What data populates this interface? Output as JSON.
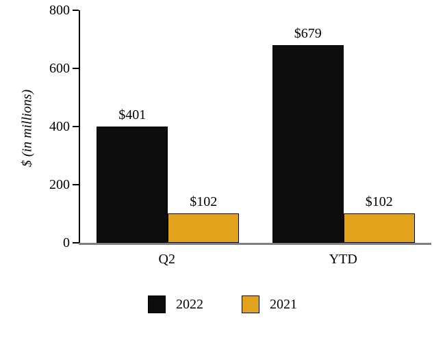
{
  "chart_data": {
    "type": "bar",
    "title": "",
    "xlabel": "",
    "ylabel": "$ (in millions)",
    "categories": [
      "Q2",
      "YTD"
    ],
    "series": [
      {
        "name": "2022",
        "color": "#0d0d0d",
        "values": [
          401,
          679
        ],
        "value_labels": [
          "$401",
          "$679"
        ]
      },
      {
        "name": "2021",
        "color": "#e2a21c",
        "values": [
          102,
          102
        ],
        "value_labels": [
          "$102",
          "$102"
        ]
      }
    ],
    "ylim": [
      0,
      800
    ],
    "yticks": [
      0,
      200,
      400,
      600,
      800
    ],
    "grid": false,
    "legend_position": "bottom",
    "axis_color": "#000000",
    "baseline_color": "#7f7f7f"
  }
}
